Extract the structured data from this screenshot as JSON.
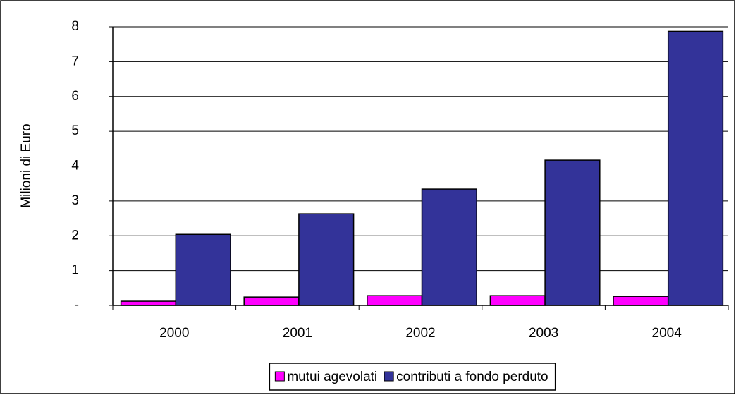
{
  "chart_data": {
    "type": "bar",
    "y_label": "Milioni di Euro",
    "categories": [
      "2000",
      "2001",
      "2002",
      "2003",
      "2004"
    ],
    "series": [
      {
        "name": "mutui agevolati",
        "color": "#ff00ff",
        "values": [
          0.12,
          0.24,
          0.28,
          0.28,
          0.26
        ]
      },
      {
        "name": "contributi a fondo perduto",
        "color": "#333399",
        "values": [
          2.04,
          2.63,
          3.34,
          4.17,
          7.87
        ]
      }
    ],
    "ylim": [
      0,
      8
    ],
    "yticks": [
      {
        "value": 0,
        "label": "-"
      },
      1,
      2,
      3,
      4,
      5,
      6,
      7,
      8
    ],
    "grid": true,
    "legend": "bottom"
  }
}
